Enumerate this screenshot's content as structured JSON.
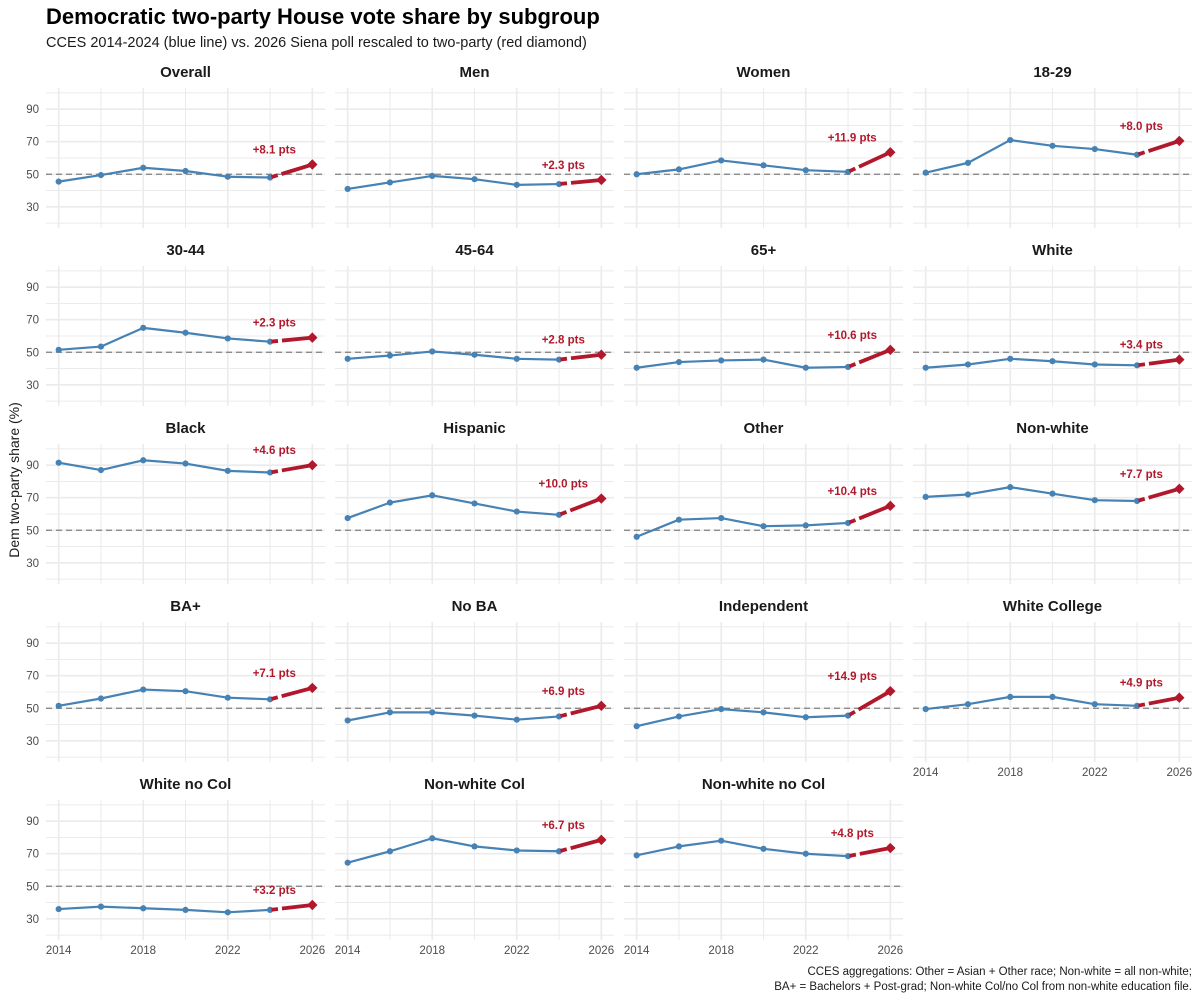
{
  "title": "Democratic two-party House vote share by subgroup",
  "subtitle": "CCES 2014-2024 (blue line) vs. 2026 Siena poll rescaled to two-party (red diamond)",
  "caption": [
    "CCES aggregations: Other = Asian + Other race; Non-white = all non-white;",
    "BA+ = Bachelors + Post-grad; Non-white Col/no Col from non-white education file."
  ],
  "colors": {
    "history": "#4682b4",
    "poll": "#b2182b",
    "reference": "#7f7f7f"
  },
  "chart_data": {
    "type": "line",
    "facets": true,
    "ylabel": "Dem two-party share (%)",
    "xlabel": "",
    "x": [
      2014,
      2016,
      2018,
      2020,
      2022,
      2024
    ],
    "x_ticks": [
      2014,
      2018,
      2022,
      2026
    ],
    "y_ticks": [
      30,
      50,
      70,
      90
    ],
    "ylim": [
      17,
      103
    ],
    "xlim": [
      2013.4,
      2026.6
    ],
    "reference_line": 50,
    "poll_year": 2026,
    "grid": true,
    "panels": [
      {
        "name": "Overall",
        "values": [
          45.5,
          49.5,
          54,
          52,
          48.5,
          48
        ],
        "poll": 56,
        "label": "+8.1 pts"
      },
      {
        "name": "Men",
        "values": [
          41,
          45,
          49,
          47,
          43.5,
          44
        ],
        "poll": 46.5,
        "label": "+2.3 pts"
      },
      {
        "name": "Women",
        "values": [
          50,
          53,
          58.5,
          55.5,
          52.5,
          51.5
        ],
        "poll": 63.5,
        "label": "+11.9 pts"
      },
      {
        "name": "18-29",
        "values": [
          51,
          57,
          71,
          67.5,
          65.5,
          62
        ],
        "poll": 70.5,
        "label": "+8.0 pts"
      },
      {
        "name": "30-44",
        "values": [
          51.5,
          53.5,
          65,
          62,
          58.5,
          56.5
        ],
        "poll": 59,
        "label": "+2.3 pts"
      },
      {
        "name": "45-64",
        "values": [
          46,
          48,
          50.5,
          48.5,
          46,
          45.5
        ],
        "poll": 48.5,
        "label": "+2.8 pts"
      },
      {
        "name": "65+",
        "values": [
          40.5,
          44,
          45,
          45.5,
          40.5,
          41
        ],
        "poll": 51.5,
        "label": "+10.6 pts"
      },
      {
        "name": "White",
        "values": [
          40.5,
          42.5,
          46,
          44.5,
          42.5,
          42
        ],
        "poll": 45.5,
        "label": "+3.4 pts"
      },
      {
        "name": "Black",
        "values": [
          91.5,
          87,
          93,
          91,
          86.5,
          85.5
        ],
        "poll": 90,
        "label": "+4.6 pts"
      },
      {
        "name": "Hispanic",
        "values": [
          57.5,
          67,
          71.5,
          66.5,
          61.5,
          59.5
        ],
        "poll": 69.5,
        "label": "+10.0 pts"
      },
      {
        "name": "Other",
        "values": [
          46,
          56.5,
          57.5,
          52.5,
          53,
          54.5
        ],
        "poll": 65,
        "label": "+10.4 pts"
      },
      {
        "name": "Non-white",
        "values": [
          70.5,
          72,
          76.5,
          72.5,
          68.5,
          68
        ],
        "poll": 75.5,
        "label": "+7.7 pts"
      },
      {
        "name": "BA+",
        "values": [
          51.5,
          56,
          61.5,
          60.5,
          56.5,
          55.5
        ],
        "poll": 62.5,
        "label": "+7.1 pts"
      },
      {
        "name": "No BA",
        "values": [
          42.5,
          47.5,
          47.5,
          45.5,
          43,
          45
        ],
        "poll": 51.5,
        "label": "+6.9 pts"
      },
      {
        "name": "Independent",
        "values": [
          39,
          45,
          49.5,
          47.5,
          44.5,
          45.5
        ],
        "poll": 60.5,
        "label": "+14.9 pts"
      },
      {
        "name": "White College",
        "values": [
          49.5,
          52.5,
          57,
          57,
          52.5,
          51.5
        ],
        "poll": 56.5,
        "label": "+4.9 pts"
      },
      {
        "name": "White no Col",
        "values": [
          36,
          37.5,
          36.5,
          35.5,
          34,
          35.5
        ],
        "poll": 38.5,
        "label": "+3.2 pts"
      },
      {
        "name": "Non-white Col",
        "values": [
          64.5,
          71.5,
          79.5,
          74.5,
          72,
          71.5
        ],
        "poll": 78.5,
        "label": "+6.7 pts"
      },
      {
        "name": "Non-white no Col",
        "values": [
          69,
          74.5,
          78,
          73,
          70,
          68.5
        ],
        "poll": 73.5,
        "label": "+4.8 pts"
      }
    ]
  }
}
